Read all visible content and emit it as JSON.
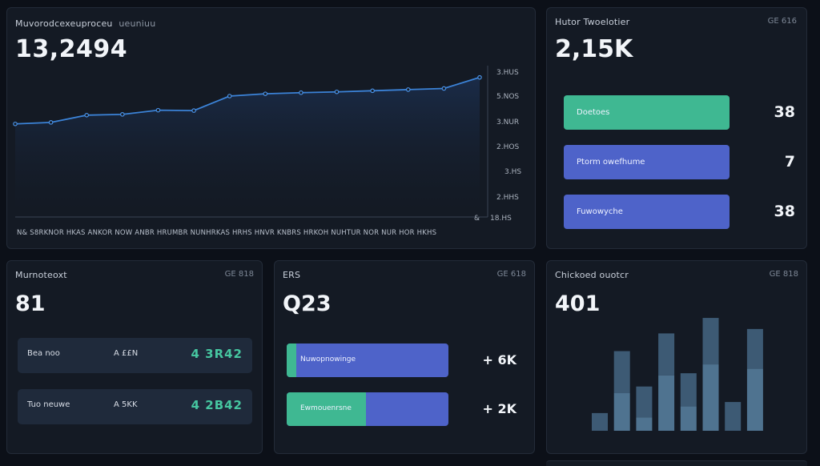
{
  "colors": {
    "background": "#0c1018",
    "card": "#141a24",
    "line": "#3b82d6",
    "green": "#3fb892",
    "blue": "#4e63c9",
    "value_green": "#46c6a0",
    "bars": "#4d6d8a"
  },
  "main_panel": {
    "title": "Muvorodcexeuproceu",
    "subtitle": "ueuniuu",
    "value": "13,2494",
    "x_axis_text": "N& S8RKNOR HKAS ANKOR NOW ANBR HRUMBR NUNHRKAS HRHS HNVR KNBRS HRKOH NUHTUR NOR NUR HOR HKHS",
    "y_ticks": [
      "3.HUS",
      "5.NOS",
      "3.NUR",
      "2.HOS",
      "3.HS",
      "2.HHS",
      "&",
      "18.HS"
    ]
  },
  "top_right_panel": {
    "title": "Hutor Twoelotier",
    "meta": "GE 616",
    "value": "2,15K",
    "bars": [
      {
        "label": "Doetoes",
        "value": "38",
        "color": "#3fb892"
      },
      {
        "label": "Ptorm owefhume",
        "value": "7",
        "color": "#4e63c9"
      },
      {
        "label": "Fuwowyche",
        "value": "38",
        "color": "#4e63c9"
      }
    ]
  },
  "bottom_left_panel": {
    "title": "Murnoteoxt",
    "meta": "GE 818",
    "value": "81",
    "rows": [
      {
        "label": "Bea noo",
        "mid": "A ££N",
        "value": "4 3R42"
      },
      {
        "label": "Tuo neuwe",
        "mid": "A 5KK",
        "value": "4 2B42"
      }
    ]
  },
  "bottom_mid_panel": {
    "title": "ERS",
    "meta": "GE 618",
    "value": "Q23",
    "bars": [
      {
        "label": "Nuwopnowinge",
        "value": "+ 6K",
        "fill": 0.06
      },
      {
        "label": "Ewmouenrsne",
        "value": "+ 2K",
        "fill": 0.49
      }
    ]
  },
  "bottom_right_panel": {
    "title": "Chickoed ouotcr",
    "meta": "GE 818",
    "value": "401"
  },
  "chart_data": [
    {
      "type": "area",
      "title": "Muvorodcexeuproceu",
      "x": [
        1,
        2,
        3,
        4,
        5,
        6,
        7,
        8,
        9,
        10,
        11,
        12,
        13,
        14
      ],
      "y": [
        24.2,
        24.6,
        26.5,
        26.7,
        27.8,
        27.7,
        31.5,
        32.1,
        32.4,
        32.6,
        32.9,
        33.2,
        33.5,
        36.4
      ],
      "ylim": [
        0,
        42
      ]
    },
    {
      "type": "bar",
      "title": "Chickoed ouotcr",
      "values": [
        [
          8,
          0
        ],
        [
          36,
          17
        ],
        [
          20,
          6
        ],
        [
          44,
          25
        ],
        [
          26,
          11
        ],
        [
          51,
          30
        ],
        [
          13,
          0
        ],
        [
          46,
          28
        ]
      ],
      "ylim": [
        0,
        55
      ]
    }
  ]
}
